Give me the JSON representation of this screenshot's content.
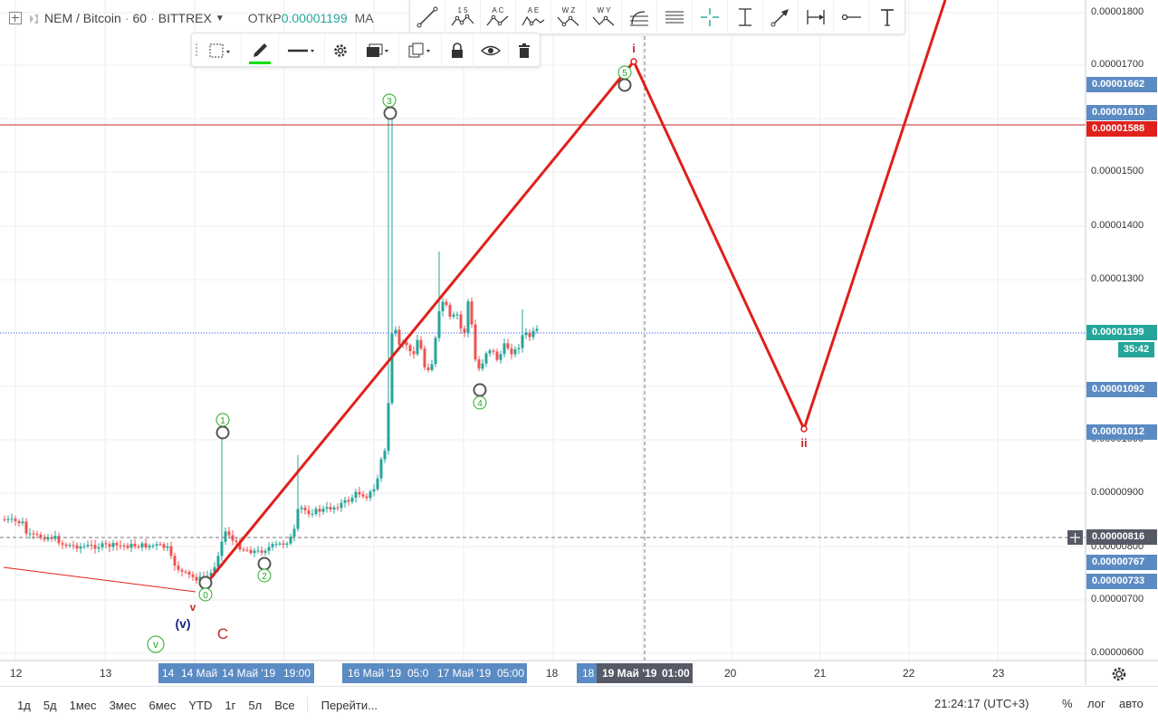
{
  "legend": {
    "symbol": "NEM / Bitcoin",
    "interval": "60",
    "exchange": "BITTREX",
    "separator": "·",
    "open_label": "ОТКР",
    "open_value": "0.00001199",
    "ma_label": "MA"
  },
  "drawing_toolbar": [
    "1 5",
    "A C",
    "A E",
    "W Z",
    "W Y"
  ],
  "price_axis": {
    "ticks": [
      "0.00001800",
      "0.00001700",
      "0.00001500",
      "0.00001400",
      "0.00001300",
      "0.00001000",
      "0.00000900",
      "0.00000800",
      "0.00000700",
      "0.00000600"
    ],
    "tags": {
      "p1662": "0.00001662",
      "p1610": "0.00001610",
      "p1588": "0.00001588",
      "p1199": "0.00001199",
      "p1092": "0.00001092",
      "p1012": "0.00001012",
      "p816": "0.00000816",
      "p767": "0.00000767",
      "p733": "0.00000733"
    },
    "timer": "35:42"
  },
  "time_axis": {
    "labels": [
      "12",
      "13",
      "14",
      "14 Май",
      "14 Май '19",
      "19:00",
      "16 Май '19",
      "05:0",
      "17 Май '19",
      "05:00",
      "18",
      "18",
      "19 Май '19",
      "01:00",
      "20",
      "21",
      "22",
      "23"
    ]
  },
  "wave_labels": {
    "w1": "1",
    "w2": "2",
    "w3": "3",
    "w4": "4",
    "w5": "5",
    "w0": "0",
    "big_i": "i",
    "big_ii": "ii",
    "v_small": "v",
    "v_paren": "(v)",
    "v_circle": "v",
    "big_c": "C"
  },
  "bottom_bar": {
    "ranges": [
      "1д",
      "5д",
      "1мес",
      "3мес",
      "6мес",
      "YTD",
      "1г",
      "5л",
      "Все"
    ],
    "goto": "Перейти...",
    "clock": "21:24:17 (UTC+3)",
    "percent": "%",
    "log": "лог",
    "auto": "авто"
  },
  "colors": {
    "up": "#26a69a",
    "down": "#ef5350",
    "wave": "#e0201b",
    "price_tag": "#5b8bc3",
    "red_tag": "#e0201b"
  },
  "chart_data": {
    "type": "candlestick",
    "x_range": [
      "2019-05-11",
      "2019-05-23"
    ],
    "ylim": [
      5.9e-06,
      1.83e-05
    ],
    "horizontal_lines": [
      1.588e-05,
      1.199e-05,
      8.16e-06
    ],
    "projection_path": [
      {
        "x": "2019-05-13 16:00",
        "y": 7.4e-06
      },
      {
        "x": "2019-05-19 00:00",
        "y": 1.7e-05
      },
      {
        "x": "2019-05-21 00:00",
        "y": 1.02e-05
      },
      {
        "x": "2019-05-23 00:00",
        "y": 1.9e-05
      }
    ],
    "wave_points": [
      {
        "label": "1",
        "x": "2019-05-14 05:00",
        "y": 1.01e-05
      },
      {
        "label": "2",
        "x": "2019-05-14 16:00",
        "y": 7.6e-06
      },
      {
        "label": "3",
        "x": "2019-05-16 00:00",
        "y": 1.61e-05
      },
      {
        "label": "4",
        "x": "2019-05-17 05:00",
        "y": 1.09e-05
      },
      {
        "label": "5",
        "x": "2019-05-18 20:00",
        "y": 1.66e-05
      },
      {
        "label": "0",
        "x": "2019-05-13 16:00",
        "y": 7.33e-06
      }
    ]
  }
}
